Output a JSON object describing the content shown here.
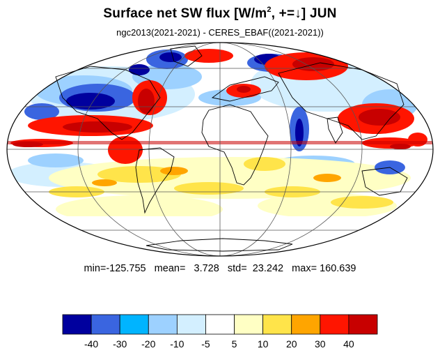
{
  "title": {
    "main": "Surface net SW flux [W/m",
    "sup": "2",
    "rest": ", +=↓]  JUN"
  },
  "subtitle": "ngc2013(2021-2021) - CERES_EBAF((2021-2021))",
  "stats": "min=-125.755   mean=   3.728   std=  23.242   max= 160.639",
  "colorbar": {
    "colors": [
      "#00009e",
      "#3a65e0",
      "#00b4ff",
      "#9dd1ff",
      "#d3efff",
      "#ffffff",
      "#ffffc4",
      "#ffe44a",
      "#ffa500",
      "#ff1500",
      "#c80000"
    ],
    "labels": [
      "-40",
      "-30",
      "-20",
      "-10",
      "-5",
      "5",
      "10",
      "20",
      "30",
      "40"
    ]
  }
}
